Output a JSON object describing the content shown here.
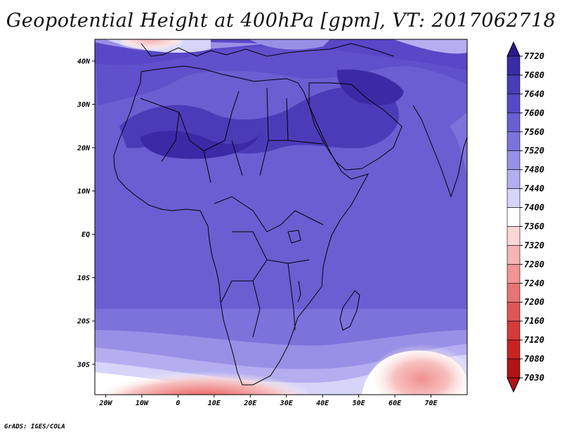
{
  "title": "Geopotential Height at 400hPa [gpm], VT: 2017062718",
  "credit": "GrADS: IGES/COLA",
  "x_axis": {
    "lon": [
      -20,
      -10,
      0,
      10,
      20,
      30,
      40,
      50,
      60,
      70
    ],
    "labels": [
      "20W",
      "10W",
      "0",
      "10E",
      "20E",
      "30E",
      "40E",
      "50E",
      "60E",
      "70E"
    ]
  },
  "y_axis": {
    "lat": [
      40,
      30,
      20,
      10,
      0,
      -10,
      -20,
      -30
    ],
    "labels": [
      "40N",
      "30N",
      "20N",
      "10N",
      "EQ",
      "10S",
      "20S",
      "30S"
    ]
  },
  "extent": {
    "lon_min": -23,
    "lon_max": 80,
    "lat_min": -37,
    "lat_max": 45
  },
  "colorbar": {
    "levels": [
      "7720",
      "7680",
      "7640",
      "7600",
      "7560",
      "7520",
      "7480",
      "7440",
      "7400",
      "7360",
      "7320",
      "7280",
      "7240",
      "7200",
      "7160",
      "7120",
      "7080",
      "7030"
    ],
    "colors": [
      "#2c1a8c",
      "#3a2aa6",
      "#4a3cb8",
      "#5848c6",
      "#6a5ed2",
      "#7c72dc",
      "#9890e6",
      "#b4aef0",
      "#d6d4f8",
      "#ffffff",
      "#fbd6d6",
      "#f6b4b4",
      "#f09494",
      "#e87474",
      "#e05656",
      "#d63a3a",
      "#c82424",
      "#b01414"
    ]
  }
}
